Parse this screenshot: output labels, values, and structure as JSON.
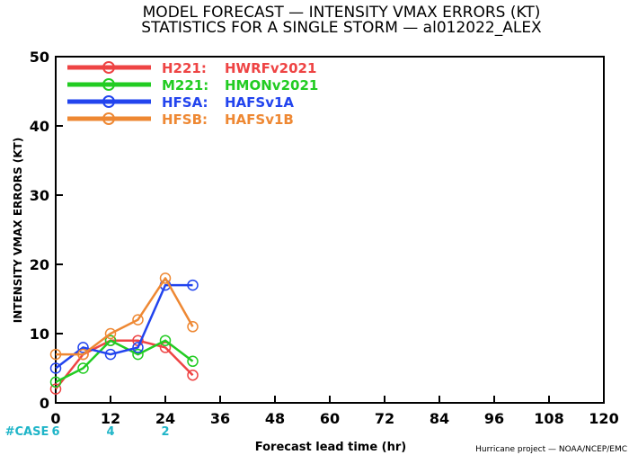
{
  "chart_data": {
    "type": "line",
    "title": "MODEL FORECAST — INTENSITY VMAX ERRORS (KT)",
    "subtitle": "STATISTICS FOR A SINGLE STORM — al012022_ALEX",
    "xlabel": "Forecast lead time (hr)",
    "ylabel": "INTENSITY VMAX ERRORS (KT)",
    "xlim": [
      0,
      120
    ],
    "ylim": [
      0,
      50
    ],
    "xticks": [
      0,
      12,
      24,
      36,
      48,
      60,
      72,
      84,
      96,
      108,
      120
    ],
    "yticks": [
      0,
      10,
      20,
      30,
      40,
      50
    ],
    "grid": false,
    "legend_position": "top-left",
    "credit": "Hurricane project — NOAA/NCEP/EMC",
    "case_label": "#CASE",
    "cases": [
      {
        "x": 0,
        "label": "6"
      },
      {
        "x": 12,
        "label": "4"
      },
      {
        "x": 24,
        "label": "2"
      }
    ],
    "series": [
      {
        "name": "H221:",
        "desc": "HWRFv2021",
        "color": "#ee4444",
        "x": [
          0,
          6,
          12,
          18,
          24,
          30
        ],
        "values": [
          2,
          7,
          9,
          9,
          8,
          4
        ]
      },
      {
        "name": "M221:",
        "desc": "HMONv2021",
        "color": "#22cc22",
        "x": [
          0,
          6,
          12,
          18,
          24,
          30
        ],
        "values": [
          3,
          5,
          9,
          7,
          9,
          6
        ]
      },
      {
        "name": "HFSA:",
        "desc": "HAFSv1A",
        "color": "#2244ee",
        "x": [
          0,
          6,
          12,
          18,
          24,
          30
        ],
        "values": [
          5,
          8,
          7,
          8,
          17,
          17
        ]
      },
      {
        "name": "HFSB:",
        "desc": "HAFSv1B",
        "color": "#ee8833",
        "x": [
          0,
          6,
          12,
          18,
          24,
          30
        ],
        "values": [
          7,
          7,
          10,
          12,
          18,
          11
        ]
      }
    ]
  }
}
